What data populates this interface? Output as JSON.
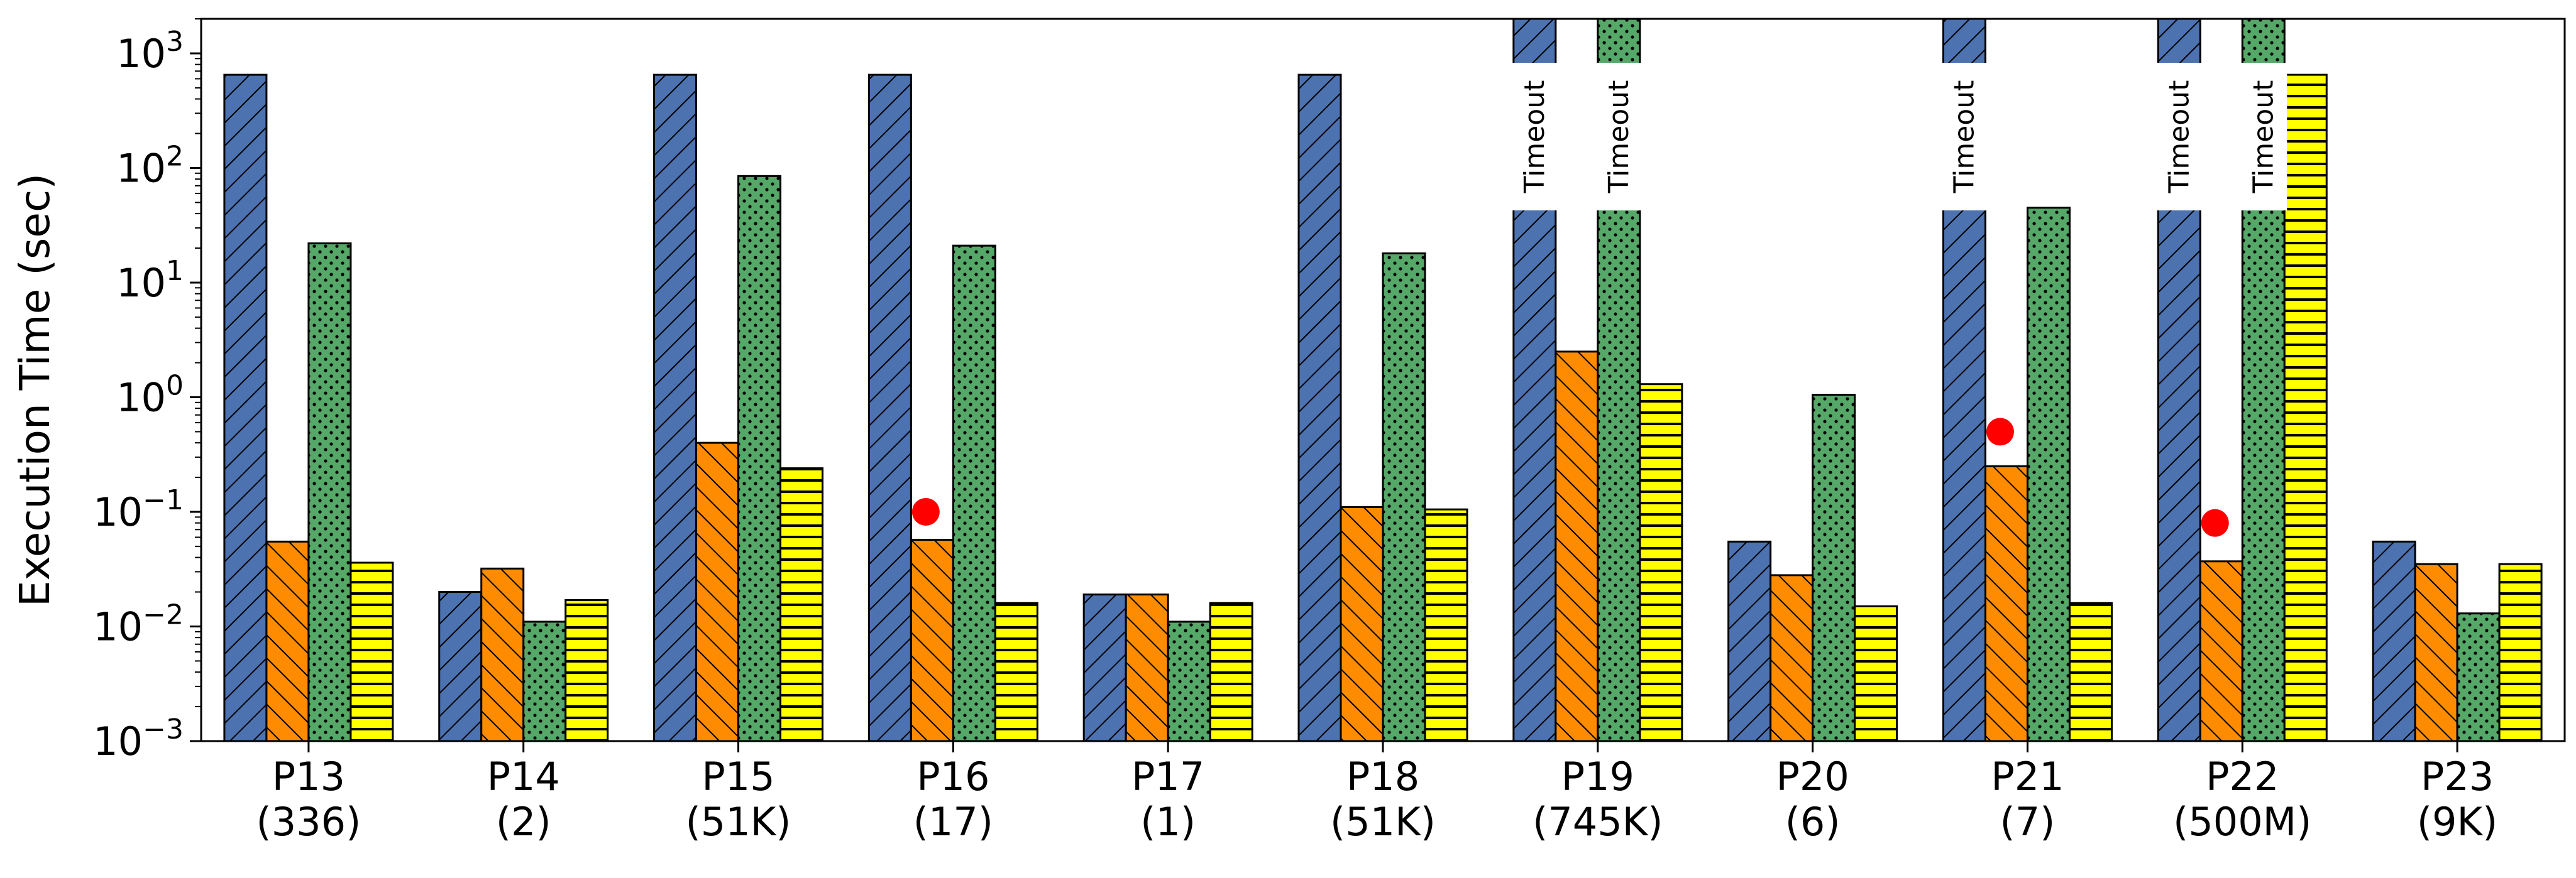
{
  "chart_data": {
    "type": "bar",
    "scale": "log",
    "ylabel": "Execution Time (sec)",
    "ylim": [
      0.001,
      2000
    ],
    "yticks": [
      {
        "value": 0.001,
        "base": "10",
        "exp": "−3"
      },
      {
        "value": 0.01,
        "base": "10",
        "exp": "−2"
      },
      {
        "value": 0.1,
        "base": "10",
        "exp": "−1"
      },
      {
        "value": 1,
        "base": "10",
        "exp": "0"
      },
      {
        "value": 10,
        "base": "10",
        "exp": "1"
      },
      {
        "value": 100,
        "base": "10",
        "exp": "2"
      },
      {
        "value": 1000,
        "base": "10",
        "exp": "3"
      }
    ],
    "categories": [
      {
        "name": "P13",
        "sub": "(336)"
      },
      {
        "name": "P14",
        "sub": "(2)"
      },
      {
        "name": "P15",
        "sub": "(51K)"
      },
      {
        "name": "P16",
        "sub": "(17)"
      },
      {
        "name": "P17",
        "sub": "(1)"
      },
      {
        "name": "P18",
        "sub": "(51K)"
      },
      {
        "name": "P19",
        "sub": "(745K)"
      },
      {
        "name": "P20",
        "sub": "(6)"
      },
      {
        "name": "P21",
        "sub": "(7)"
      },
      {
        "name": "P22",
        "sub": "(500M)"
      },
      {
        "name": "P23",
        "sub": "(9K)"
      }
    ],
    "series": [
      {
        "color": "#4c72b0",
        "hatch": "diag-right",
        "values": [
          650,
          0.02,
          650,
          650,
          0.019,
          650,
          null,
          0.055,
          null,
          null,
          0.055
        ],
        "timeout": [
          false,
          false,
          false,
          false,
          false,
          false,
          true,
          false,
          true,
          true,
          false
        ]
      },
      {
        "color": "#ff8c00",
        "hatch": "diag-left",
        "values": [
          0.055,
          0.032,
          0.4,
          0.057,
          0.019,
          0.11,
          2.5,
          0.028,
          0.25,
          0.037,
          0.035
        ],
        "timeout": [
          false,
          false,
          false,
          false,
          false,
          false,
          false,
          false,
          false,
          false,
          false
        ]
      },
      {
        "color": "#55a868",
        "hatch": "dots",
        "values": [
          22,
          0.011,
          85,
          21,
          0.011,
          18,
          null,
          1.05,
          45,
          null,
          0.013
        ],
        "timeout": [
          false,
          false,
          false,
          false,
          false,
          false,
          true,
          false,
          false,
          true,
          false
        ]
      },
      {
        "color": "#ffff00",
        "hatch": "horizontal",
        "values": [
          0.036,
          0.017,
          0.24,
          0.016,
          0.016,
          0.105,
          1.3,
          0.015,
          0.016,
          650,
          0.035
        ],
        "timeout": [
          false,
          false,
          false,
          false,
          false,
          false,
          false,
          false,
          false,
          false,
          false
        ]
      }
    ],
    "timeout_label": "Timeout",
    "markers": [
      {
        "category": "P16",
        "value": 0.1
      },
      {
        "category": "P21",
        "value": 0.5
      },
      {
        "category": "P22",
        "value": 0.08
      }
    ],
    "marker_color": "#ff0000"
  }
}
